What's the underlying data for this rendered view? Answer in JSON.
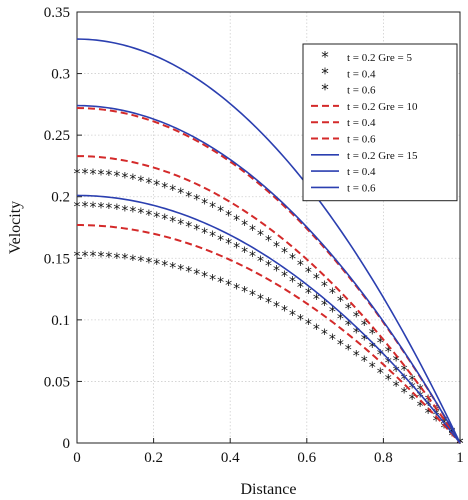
{
  "chart_data": {
    "type": "line",
    "xlabel": "Distance",
    "ylabel": "Velocity",
    "xlim": [
      0,
      1
    ],
    "ylim": [
      0,
      0.35
    ],
    "x_ticks": [
      "0",
      "0.2",
      "0.4",
      "0.6",
      "0.8",
      "1"
    ],
    "y_ticks": [
      "0",
      "0.05",
      "0.1",
      "0.15",
      "0.2",
      "0.25",
      "0.3",
      "0.35"
    ],
    "grid": true,
    "legend_position": "top-right",
    "colors": {
      "gre5": "#111111",
      "gre10": "#d42a2a",
      "gre15": "#2b3fb0"
    },
    "series": [
      {
        "name": "t = 0.2 Gre = 5",
        "style": "markers",
        "color": "#111111",
        "peak": 0.219
      },
      {
        "name": "t = 0.4",
        "style": "markers",
        "color": "#111111",
        "peak": 0.192
      },
      {
        "name": "t = 0.6",
        "style": "markers",
        "color": "#111111",
        "peak": 0.152
      },
      {
        "name": "t = 0.2 Gre = 10",
        "style": "dashed",
        "color": "#d42a2a",
        "peak": 0.272
      },
      {
        "name": "t = 0.4",
        "style": "dashed",
        "color": "#d42a2a",
        "peak": 0.233
      },
      {
        "name": "t = 0.6",
        "style": "dashed",
        "color": "#d42a2a",
        "peak": 0.177
      },
      {
        "name": "t = 0.2 Gre = 15",
        "style": "solid",
        "color": "#2b3fb0",
        "peak": 0.328
      },
      {
        "name": "t = 0.4",
        "style": "solid",
        "color": "#2b3fb0",
        "peak": 0.274
      },
      {
        "name": "t = 0.6",
        "style": "solid",
        "color": "#2b3fb0",
        "peak": 0.201
      }
    ]
  }
}
